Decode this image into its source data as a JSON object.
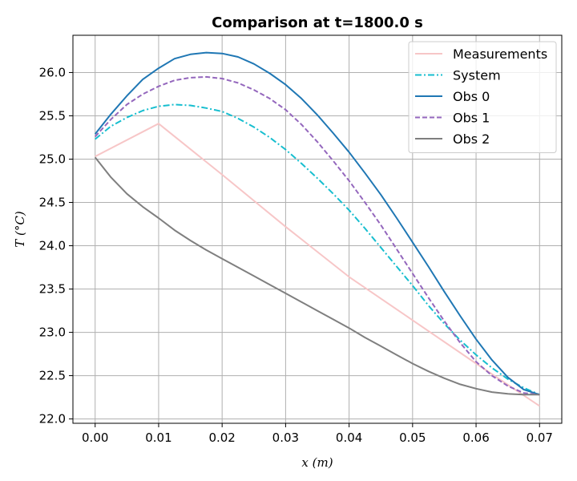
{
  "chart_data": {
    "type": "line",
    "title": "Comparison at t=1800.0 s",
    "xlabel": "x (m)",
    "ylabel": "T (°C)",
    "xlim": [
      -0.0035,
      0.0735
    ],
    "ylim": [
      21.95,
      26.43
    ],
    "xticks": [
      0.0,
      0.01,
      0.02,
      0.03,
      0.04,
      0.05,
      0.06,
      0.07
    ],
    "xtick_labels": [
      "0.00",
      "0.01",
      "0.02",
      "0.03",
      "0.04",
      "0.05",
      "0.06",
      "0.07"
    ],
    "yticks": [
      22.0,
      22.5,
      23.0,
      23.5,
      24.0,
      24.5,
      25.0,
      25.5,
      26.0
    ],
    "ytick_labels": [
      "22.0",
      "22.5",
      "23.0",
      "23.5",
      "24.0",
      "24.5",
      "25.0",
      "25.5",
      "26.0"
    ],
    "grid": true,
    "legend_position": "top-right",
    "series": [
      {
        "name": "Measurements",
        "color": "#f7c6c7",
        "dash": "solid",
        "x": [
          0.0,
          0.01,
          0.02,
          0.03,
          0.04,
          0.05,
          0.06,
          0.07
        ],
        "y": [
          25.03,
          25.41,
          24.82,
          24.22,
          23.64,
          23.14,
          22.64,
          22.15
        ]
      },
      {
        "name": "System",
        "color": "#17becf",
        "dash": "dashdot",
        "x": [
          0.0,
          0.0025,
          0.005,
          0.0075,
          0.01,
          0.0125,
          0.015,
          0.0175,
          0.02,
          0.0225,
          0.025,
          0.0275,
          0.03,
          0.0325,
          0.035,
          0.0375,
          0.04,
          0.0425,
          0.045,
          0.0475,
          0.05,
          0.0525,
          0.055,
          0.0575,
          0.06,
          0.0625,
          0.065,
          0.0675,
          0.07
        ],
        "y": [
          25.23,
          25.38,
          25.48,
          25.56,
          25.61,
          25.63,
          25.62,
          25.59,
          25.55,
          25.47,
          25.37,
          25.25,
          25.11,
          24.95,
          24.78,
          24.6,
          24.41,
          24.2,
          23.98,
          23.76,
          23.54,
          23.31,
          23.1,
          22.91,
          22.74,
          22.59,
          22.46,
          22.36,
          22.28
        ]
      },
      {
        "name": "Obs 0",
        "color": "#1f77b4",
        "dash": "solid",
        "x": [
          0.0,
          0.0025,
          0.005,
          0.0075,
          0.01,
          0.0125,
          0.015,
          0.0175,
          0.02,
          0.0225,
          0.025,
          0.0275,
          0.03,
          0.0325,
          0.035,
          0.0375,
          0.04,
          0.0425,
          0.045,
          0.0475,
          0.05,
          0.0525,
          0.055,
          0.0575,
          0.06,
          0.0625,
          0.065,
          0.0675,
          0.07
        ],
        "y": [
          25.29,
          25.52,
          25.73,
          25.92,
          26.05,
          26.16,
          26.21,
          26.23,
          26.22,
          26.18,
          26.1,
          25.99,
          25.86,
          25.7,
          25.51,
          25.3,
          25.08,
          24.84,
          24.59,
          24.32,
          24.04,
          23.76,
          23.47,
          23.19,
          22.92,
          22.68,
          22.48,
          22.34,
          22.28
        ]
      },
      {
        "name": "Obs 1",
        "color": "#9467bd",
        "dash": "dashed",
        "x": [
          0.0,
          0.0025,
          0.005,
          0.0075,
          0.01,
          0.0125,
          0.015,
          0.0175,
          0.02,
          0.0225,
          0.025,
          0.0275,
          0.03,
          0.0325,
          0.035,
          0.0375,
          0.04,
          0.0425,
          0.045,
          0.0475,
          0.05,
          0.0525,
          0.055,
          0.0575,
          0.06,
          0.0625,
          0.065,
          0.0675,
          0.07
        ],
        "y": [
          25.26,
          25.46,
          25.63,
          25.75,
          25.84,
          25.91,
          25.94,
          25.95,
          25.93,
          25.88,
          25.8,
          25.7,
          25.57,
          25.4,
          25.2,
          24.98,
          24.75,
          24.5,
          24.24,
          23.96,
          23.68,
          23.4,
          23.13,
          22.88,
          22.66,
          22.5,
          22.38,
          22.3,
          22.28
        ]
      },
      {
        "name": "Obs 2",
        "color": "#7f7f7f",
        "dash": "solid",
        "x": [
          0.0,
          0.0025,
          0.005,
          0.0075,
          0.01,
          0.0125,
          0.015,
          0.0175,
          0.02,
          0.0225,
          0.025,
          0.0275,
          0.03,
          0.0325,
          0.035,
          0.0375,
          0.04,
          0.0425,
          0.045,
          0.0475,
          0.05,
          0.0525,
          0.055,
          0.0575,
          0.06,
          0.0625,
          0.065,
          0.0675,
          0.07
        ],
        "y": [
          25.02,
          24.79,
          24.6,
          24.45,
          24.32,
          24.18,
          24.06,
          23.95,
          23.85,
          23.75,
          23.65,
          23.55,
          23.45,
          23.35,
          23.25,
          23.15,
          23.05,
          22.94,
          22.84,
          22.74,
          22.64,
          22.55,
          22.47,
          22.4,
          22.35,
          22.31,
          22.29,
          22.28,
          22.28
        ]
      }
    ]
  }
}
